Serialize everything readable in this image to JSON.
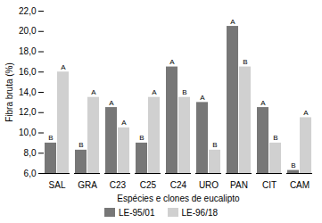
{
  "chart_data": {
    "type": "bar",
    "categories": [
      "SAL",
      "GRA",
      "C23",
      "C25",
      "C24",
      "URO",
      "PAN",
      "CIT",
      "CAM"
    ],
    "series": [
      {
        "name": "LE-95/01",
        "color": "#777777",
        "values": [
          9.0,
          8.3,
          12.5,
          9.0,
          16.5,
          13.0,
          20.5,
          12.5,
          6.3
        ],
        "annotations": [
          "B",
          "B",
          "A",
          "B",
          "A",
          "A",
          "A",
          "A",
          "B"
        ]
      },
      {
        "name": "LE-96/18",
        "color": "#d0d0d0",
        "values": [
          16.0,
          13.5,
          10.5,
          13.5,
          13.5,
          8.3,
          16.5,
          9.0,
          11.5
        ],
        "annotations": [
          "A",
          "A",
          "A",
          "A",
          "B",
          "B",
          "B",
          "B",
          "A"
        ]
      }
    ],
    "ylabel": "Fibra bruta (%)",
    "xlabel": "Espécies e clones de eucalipto",
    "ylim": [
      6.0,
      22.0
    ],
    "yticks": [
      {
        "value": 6.0,
        "label": "6,0"
      },
      {
        "value": 8.0,
        "label": "8,0"
      },
      {
        "value": 10.0,
        "label": "10,0"
      },
      {
        "value": 12.0,
        "label": "12,0"
      },
      {
        "value": 14.0,
        "label": "14,0"
      },
      {
        "value": 16.0,
        "label": "16,0"
      },
      {
        "value": 18.0,
        "label": "18,0"
      },
      {
        "value": 20.0,
        "label": "20,0"
      },
      {
        "value": 22.0,
        "label": "22,0"
      }
    ],
    "grid": false,
    "legend": "bottom"
  }
}
